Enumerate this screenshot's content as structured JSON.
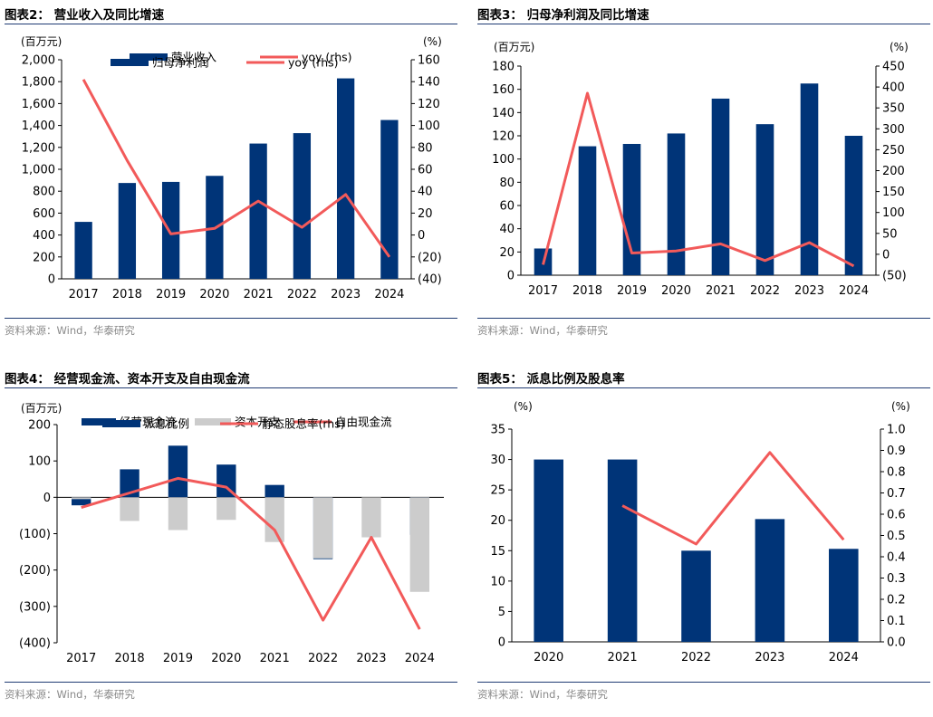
{
  "panels": [
    {
      "title": "图表2：  营业收入及同比增速",
      "source": "资料来源：Wind，华泰研究",
      "chart_data": {
        "type": "bar",
        "categories": [
          "2017",
          "2018",
          "2019",
          "2020",
          "2021",
          "2022",
          "2023",
          "2024"
        ],
        "series": [
          {
            "name": "营业收入",
            "kind": "bar",
            "axis": "left",
            "values": [
              520,
              875,
              885,
              940,
              1235,
              1330,
              1830,
              1450
            ]
          },
          {
            "name": "yoy (rhs)",
            "kind": "line",
            "axis": "right",
            "values": [
              142,
              68,
              1,
              6,
              31,
              7,
              37,
              -20
            ]
          }
        ],
        "left_unit": "(百万元)",
        "right_unit": "(%)",
        "ylim_left": [
          0,
          2000
        ],
        "ylim_right": [
          -40,
          160
        ],
        "left_ticks": [
          "0",
          "200",
          "400",
          "600",
          "800",
          "1,000",
          "1,200",
          "1,400",
          "1,600",
          "1,800",
          "2,000"
        ],
        "right_ticks": [
          "(40)",
          "(20)",
          "0",
          "20",
          "40",
          "60",
          "80",
          "100",
          "120",
          "140",
          "160"
        ],
        "grid": false,
        "legend": "top"
      }
    },
    {
      "title": "图表3：  归母净利润及同比增速",
      "source": "资料来源：Wind，华泰研究",
      "chart_data": {
        "type": "bar",
        "categories": [
          "2017",
          "2018",
          "2019",
          "2020",
          "2021",
          "2022",
          "2023",
          "2024"
        ],
        "series": [
          {
            "name": "归母净利润",
            "kind": "bar",
            "axis": "left",
            "values": [
              23,
              111,
              113,
              122,
              152,
              130,
              165,
              120
            ]
          },
          {
            "name": "yoy (rhs)",
            "kind": "line",
            "axis": "right",
            "values": [
              -25,
              385,
              3,
              8,
              25,
              -15,
              28,
              -28
            ]
          }
        ],
        "left_unit": "(百万元)",
        "right_unit": "(%)",
        "ylim_left": [
          0,
          180
        ],
        "ylim_right": [
          -50,
          450
        ],
        "left_ticks": [
          "0",
          "20",
          "40",
          "60",
          "80",
          "100",
          "120",
          "140",
          "160",
          "180"
        ],
        "right_ticks": [
          "(50)",
          "0",
          "50",
          "100",
          "150",
          "200",
          "250",
          "300",
          "350",
          "400",
          "450"
        ],
        "grid": false,
        "legend": "top"
      }
    },
    {
      "title": "图表4：  经营现金流、资本开支及自由现金流",
      "source": "资料来源：Wind，华泰研究",
      "chart_data": {
        "type": "bar",
        "categories": [
          "2017",
          "2018",
          "2019",
          "2020",
          "2021",
          "2022",
          "2023",
          "2024"
        ],
        "series": [
          {
            "name": "经营现金流",
            "kind": "bar",
            "axis": "left",
            "values": [
              -22,
              77,
              142,
              90,
              34,
              -170,
              0,
              -103
            ]
          },
          {
            "name": "资本开支",
            "kind": "bar",
            "axis": "left",
            "values": [
              -5,
              -65,
              -90,
              -62,
              -123,
              -168,
              -110,
              -260
            ]
          },
          {
            "name": "自由现金流",
            "kind": "line",
            "axis": "left",
            "values": [
              -28,
              12,
              52,
              28,
              -90,
              -338,
              -110,
              -363
            ]
          }
        ],
        "left_unit": "(百万元)",
        "ylim_left": [
          -400,
          200
        ],
        "left_ticks": [
          "(400)",
          "(300)",
          "(200)",
          "(100)",
          "0",
          "100",
          "200"
        ],
        "grid": false,
        "legend": "top"
      }
    },
    {
      "title": "图表5：  派息比例及股息率",
      "source": "资料来源：Wind，华泰研究",
      "chart_data": {
        "type": "bar",
        "categories": [
          "2020",
          "2021",
          "2022",
          "2023",
          "2024"
        ],
        "series": [
          {
            "name": "派息比例",
            "kind": "bar",
            "axis": "left",
            "values": [
              30,
              30,
              15,
              20.2,
              15.3
            ]
          },
          {
            "name": "静态股息率(rhs)",
            "kind": "line",
            "axis": "right",
            "values": [
              null,
              0.64,
              0.46,
              0.89,
              0.48
            ]
          }
        ],
        "left_unit": "(%)",
        "right_unit": "(%)",
        "ylim_left": [
          0,
          35
        ],
        "ylim_right": [
          0,
          1.0
        ],
        "left_ticks": [
          "0",
          "5",
          "10",
          "15",
          "20",
          "25",
          "30",
          "35"
        ],
        "right_ticks": [
          "0.0",
          "0.1",
          "0.2",
          "0.3",
          "0.4",
          "0.5",
          "0.6",
          "0.7",
          "0.8",
          "0.9",
          "1.0"
        ],
        "grid": false,
        "legend": "top"
      }
    }
  ],
  "colors": {
    "bar_primary": "#003478",
    "bar_secondary": "#cccccc",
    "line": "#f25a5a",
    "rule": "#1f3b73",
    "source_text": "#8a8a8a"
  }
}
